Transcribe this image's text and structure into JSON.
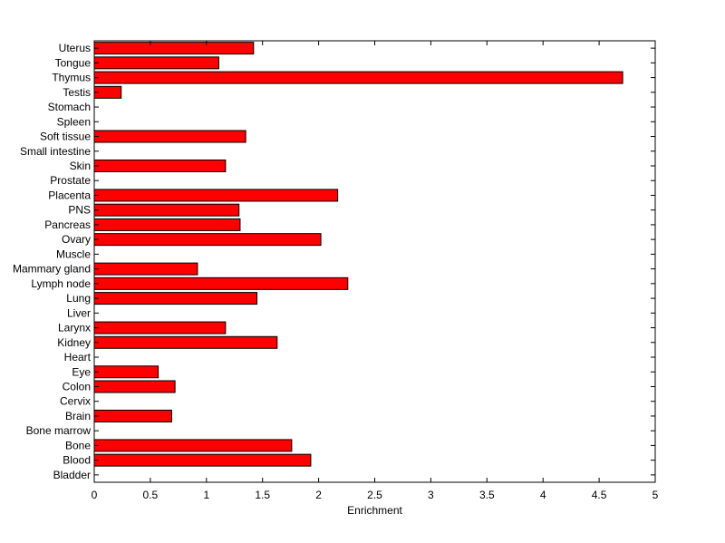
{
  "chart_data": {
    "type": "bar",
    "orientation": "horizontal",
    "title": "",
    "xlabel": "Enrichment",
    "ylabel": "",
    "xlim": [
      0,
      5
    ],
    "xticks": [
      0,
      0.5,
      1,
      1.5,
      2,
      2.5,
      3,
      3.5,
      4,
      4.5,
      5
    ],
    "xtick_labels": [
      "0",
      "0.5",
      "1",
      "1.5",
      "2",
      "2.5",
      "3",
      "3.5",
      "4",
      "4.5",
      "5"
    ],
    "grid": false,
    "legend": "none",
    "bar_color": "#ff0000",
    "bar_edge_color": "#000000",
    "categories": [
      "Uterus",
      "Tongue",
      "Thymus",
      "Testis",
      "Stomach",
      "Spleen",
      "Soft tissue",
      "Small intestine",
      "Skin",
      "Prostate",
      "Placenta",
      "PNS",
      "Pancreas",
      "Ovary",
      "Muscle",
      "Mammary gland",
      "Lymph node",
      "Lung",
      "Liver",
      "Larynx",
      "Kidney",
      "Heart",
      "Eye",
      "Colon",
      "Cervix",
      "Brain",
      "Bone marrow",
      "Bone",
      "Blood",
      "Bladder"
    ],
    "values": [
      1.42,
      1.11,
      4.71,
      0.24,
      0,
      0,
      1.35,
      0,
      1.17,
      0,
      2.17,
      1.29,
      1.3,
      2.02,
      0,
      0.92,
      2.26,
      1.45,
      0,
      1.17,
      1.63,
      0,
      0.57,
      0.72,
      0,
      0.69,
      0,
      1.76,
      1.93,
      0
    ]
  }
}
